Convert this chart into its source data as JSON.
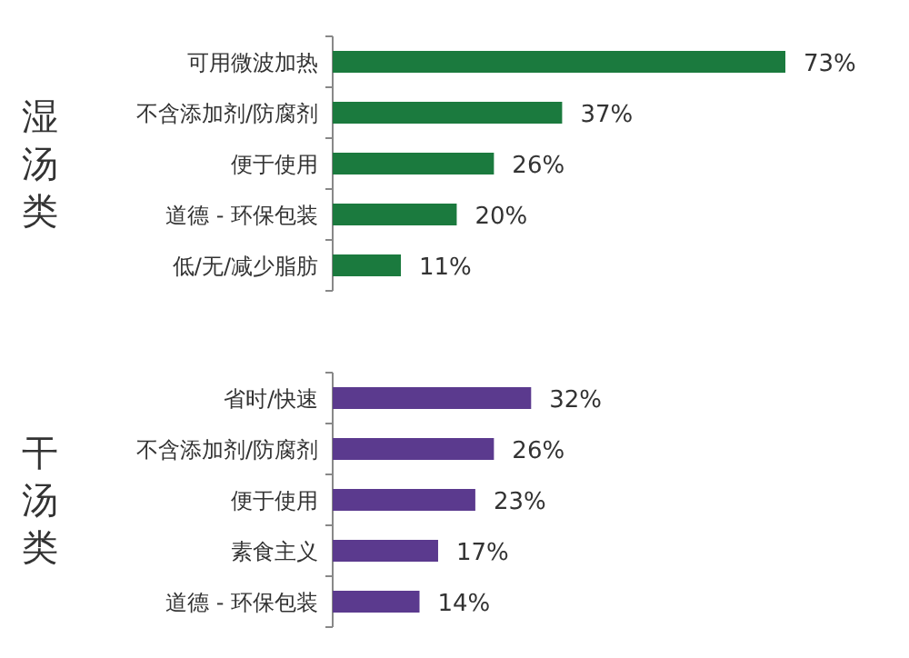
{
  "chart_data": [
    {
      "type": "bar",
      "orientation": "horizontal",
      "ylabel": "湿汤类",
      "categories": [
        "可用微波加热",
        "不含添加剂/防腐剂",
        "便于使用",
        "道德 - 环保包装",
        "低/无/减少脂肪"
      ],
      "series": [
        {
          "color": "#1b7a3e",
          "values": [
            73,
            37,
            26,
            20,
            11
          ],
          "value_labels": [
            "73%",
            "37%",
            "26%",
            "20%",
            "11%"
          ]
        }
      ]
    },
    {
      "type": "bar",
      "orientation": "horizontal",
      "ylabel": "干汤类",
      "categories": [
        "省时/快速",
        "不含添加剂/防腐剂",
        "便于使用",
        "素食主义",
        "道德 - 环保包装"
      ],
      "series": [
        {
          "color": "#5b3a8e",
          "values": [
            32,
            26,
            23,
            17,
            14
          ],
          "value_labels": [
            "32%",
            "26%",
            "23%",
            "17%",
            "14%"
          ]
        }
      ]
    }
  ]
}
